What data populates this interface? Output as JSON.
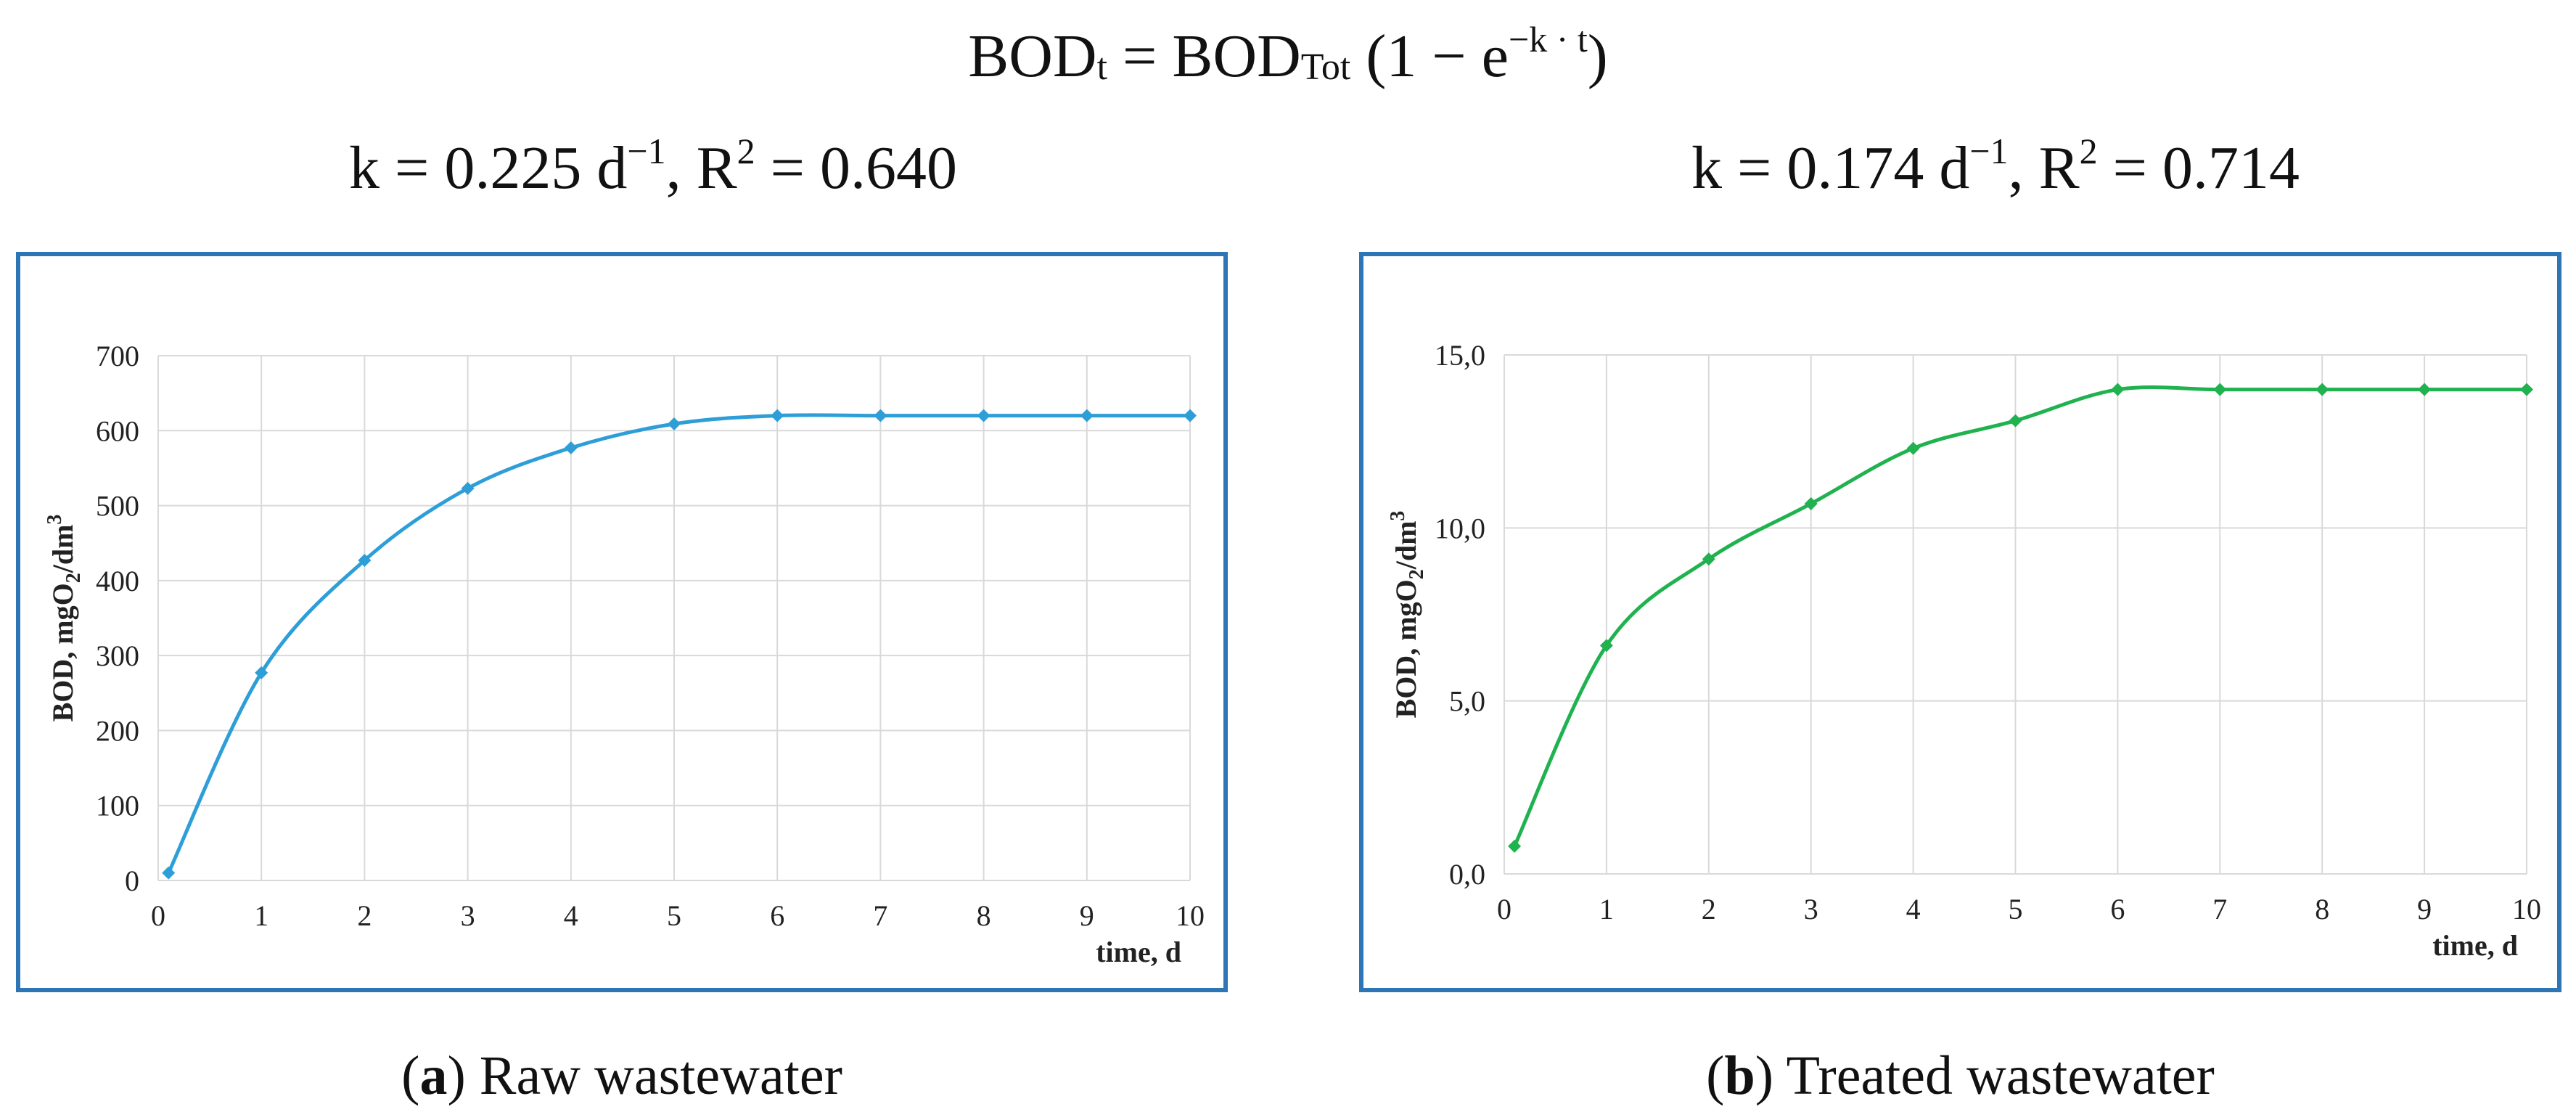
{
  "formula": {
    "lhs_main": "BOD",
    "lhs_sub": "t",
    "equals": "=",
    "rhs_main": "BOD",
    "rhs_sub": "Tot",
    "open": "(1 − e",
    "exp": "−k · t",
    "close": ")"
  },
  "chart_data": [
    {
      "type": "line",
      "fit_label": {
        "k_prefix": "k = 0.225 d",
        "k_exp": "−1",
        "r_prefix": ", R",
        "r_exp": "2",
        "r_value": " = 0.640"
      },
      "ylabel_main": "BOD, mgO",
      "ylabel_sub": "2",
      "ylabel_mid": "/dm",
      "ylabel_sup": "3",
      "xlabel": "time, d",
      "xlim": [
        0,
        10
      ],
      "ylim": [
        0,
        700
      ],
      "xticks": [
        0,
        1,
        2,
        3,
        4,
        5,
        6,
        7,
        8,
        9,
        10
      ],
      "yticks": [
        0,
        100,
        200,
        300,
        400,
        500,
        600,
        700
      ],
      "ytick_labels": [
        "0",
        "100",
        "200",
        "300",
        "400",
        "500",
        "600",
        "700"
      ],
      "grid": true,
      "color": "#2e9ed8",
      "marker": "diamond",
      "series": [
        {
          "name": "Raw wastewater",
          "x": [
            0.1,
            1,
            2,
            3,
            4,
            5,
            6,
            7,
            8,
            9,
            10
          ],
          "y": [
            10,
            277,
            427,
            523,
            577,
            609,
            620,
            620,
            620,
            620,
            620
          ]
        }
      ],
      "caption_letter": "a",
      "caption_text": " Raw wastewater"
    },
    {
      "type": "line",
      "fit_label": {
        "k_prefix": "k = 0.174 d",
        "k_exp": "−1",
        "r_prefix": ", R",
        "r_exp": "2",
        "r_value": " = 0.714"
      },
      "ylabel_main": "BOD, mgO",
      "ylabel_sub": "2",
      "ylabel_mid": "/dm",
      "ylabel_sup": "3",
      "xlabel": "time, d",
      "xlim": [
        0,
        10
      ],
      "ylim": [
        0,
        15
      ],
      "xticks": [
        0,
        1,
        2,
        3,
        4,
        5,
        6,
        7,
        8,
        9,
        10
      ],
      "yticks": [
        0,
        5,
        10,
        15
      ],
      "ytick_labels": [
        "0,0",
        "5,0",
        "10,0",
        "15,0"
      ],
      "grid": true,
      "color": "#1fb24f",
      "marker": "diamond",
      "series": [
        {
          "name": "Treated wastewater",
          "x": [
            0.1,
            1,
            2,
            3,
            4,
            5,
            6,
            7,
            8,
            9,
            10
          ],
          "y": [
            0.8,
            6.6,
            9.1,
            10.7,
            12.3,
            13.1,
            14.0,
            14.0,
            14.0,
            14.0,
            14.0
          ]
        }
      ],
      "caption_letter": "b",
      "caption_text": " Treated wastewater"
    }
  ]
}
